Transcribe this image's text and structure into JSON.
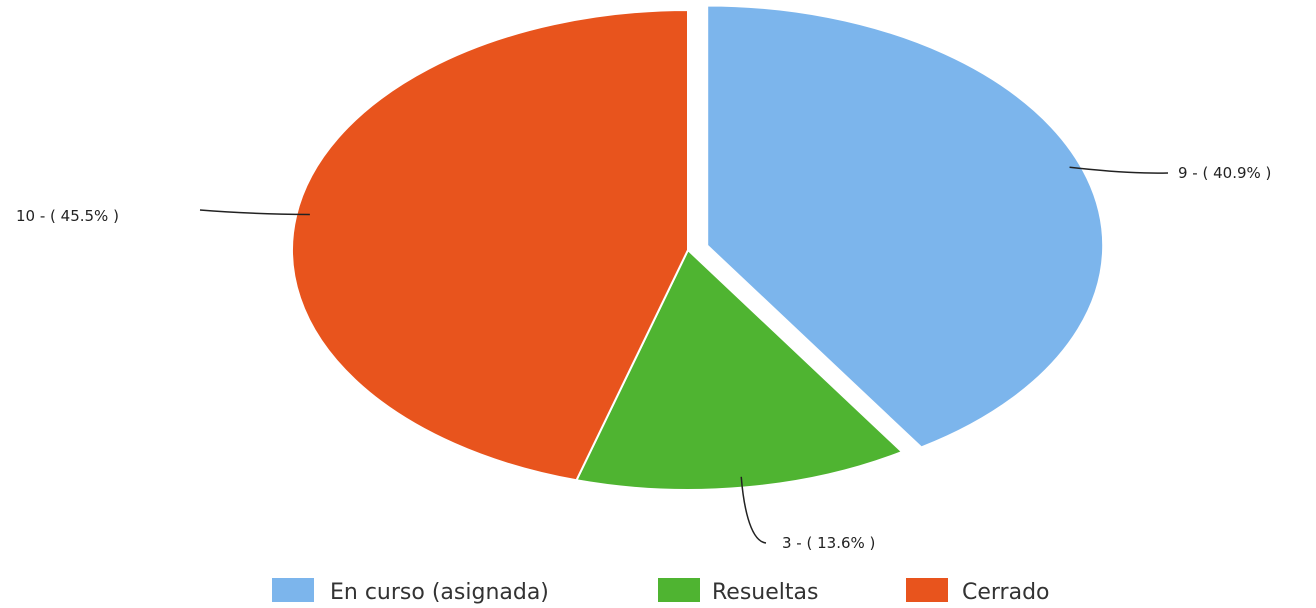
{
  "chart_data": {
    "type": "pie",
    "title": "",
    "legend_position": "bottom",
    "slices": [
      {
        "name": "En curso (asignada)",
        "value": 9,
        "percent": 40.9,
        "label": "9 - ( 40.9% )",
        "color": "#7cb5ec",
        "exploded": true
      },
      {
        "name": "Resueltas",
        "value": 3,
        "percent": 13.6,
        "label": "3 - ( 13.6% )",
        "color": "#4fb431",
        "exploded": false
      },
      {
        "name": "Cerrado",
        "value": 10,
        "percent": 45.5,
        "label": "10 - ( 45.5% )",
        "color": "#e8541d",
        "exploded": false
      }
    ]
  }
}
